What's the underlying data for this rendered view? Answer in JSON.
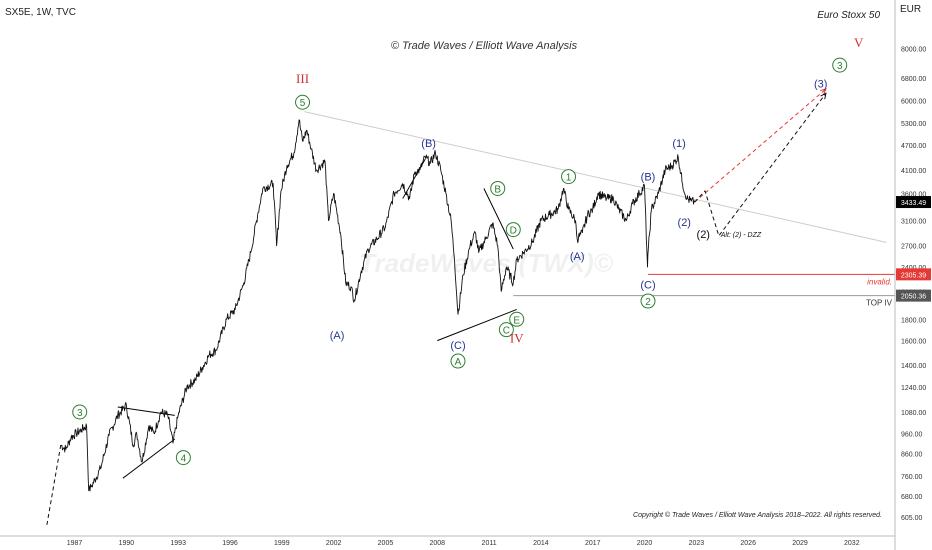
{
  "header": {
    "symbol_line": "SX5E, 1W, TVC",
    "instrument": "Euro Stoxx 50",
    "currency": "EUR"
  },
  "watermark_top": "© Trade Waves / Elliott Wave Analysis",
  "watermark_center": "TradeWaves (TWX)©",
  "copyright": "Copyright © Trade Waves / Elliott Wave Analysis 2018–2022. All rights reserved.",
  "colors": {
    "wave_red": "#d32f2f",
    "wave_green": "#2e7d32",
    "wave_navy": "#283593",
    "price_line": "#111111",
    "last_price_bg": "#000000",
    "invalid_bg": "#e53935",
    "top_iv_bg": "#555555"
  },
  "chart_data": {
    "type": "line",
    "title": "SX5E, 1W, TVC",
    "y_scale": "log",
    "ylim": [
      570,
      10000
    ],
    "xlim": [
      1985.0,
      2034.5
    ],
    "y_ticks": [
      "8000.00",
      "6800.00",
      "6000.00",
      "5300.00",
      "4700.00",
      "4100.00",
      "3600.00",
      "3100.00",
      "2700.00",
      "2400.00",
      "2100.00",
      "1800.00",
      "1600.00",
      "1400.00",
      "1240.00",
      "1080.00",
      "960.00",
      "860.00",
      "760.00",
      "680.00",
      "605.00"
    ],
    "y_tick_values": [
      8000,
      6800,
      6000,
      5300,
      4700,
      4100,
      3600,
      3100,
      2700,
      2400,
      2100,
      1800,
      1600,
      1400,
      1240,
      1080,
      960,
      860,
      760,
      680,
      605
    ],
    "x_ticks": [
      "1987",
      "1990",
      "1993",
      "1996",
      "1999",
      "2002",
      "2005",
      "2008",
      "2011",
      "2014",
      "2017",
      "2020",
      "2023",
      "2026",
      "2029",
      "2032"
    ],
    "x_tick_values": [
      1987,
      1990,
      1993,
      1996,
      1999,
      2002,
      2005,
      2008,
      2011,
      2014,
      2017,
      2020,
      2023,
      2026,
      2029,
      2032
    ],
    "price_series": {
      "name": "SX5E",
      "x": [
        1986.2,
        1986.5,
        1986.8,
        1987.1,
        1987.4,
        1987.7,
        1987.82,
        1988.0,
        1988.5,
        1989.0,
        1989.5,
        1990.0,
        1990.4,
        1990.6,
        1990.9,
        1991.3,
        1991.6,
        1992.0,
        1992.4,
        1992.7,
        1993.0,
        1993.5,
        1994.0,
        1994.4,
        1994.8,
        1995.2,
        1995.8,
        1996.3,
        1996.8,
        1997.2,
        1997.6,
        1997.9,
        1998.5,
        1998.7,
        1998.95,
        1999.3,
        1999.7,
        2000.0,
        2000.2,
        2000.45,
        2000.7,
        2001.0,
        2001.5,
        2001.7,
        2002.0,
        2002.4,
        2002.7,
        2003.0,
        2003.2,
        2003.6,
        2004.0,
        2004.5,
        2005.0,
        2005.5,
        2006.0,
        2006.4,
        2006.7,
        2007.0,
        2007.3,
        2007.6,
        2007.9,
        2008.2,
        2008.5,
        2008.8,
        2009.0,
        2009.2,
        2009.5,
        2009.9,
        2010.2,
        2010.4,
        2010.8,
        2011.2,
        2011.5,
        2011.7,
        2012.0,
        2012.4,
        2012.6,
        2013.0,
        2013.5,
        2014.0,
        2014.5,
        2015.0,
        2015.3,
        2015.6,
        2016.0,
        2016.1,
        2016.4,
        2016.7,
        2017.0,
        2017.3,
        2017.8,
        2018.2,
        2018.5,
        2018.95,
        2019.3,
        2019.7,
        2020.0,
        2020.17,
        2020.22,
        2020.4,
        2020.8,
        2021.2,
        2021.6,
        2021.95,
        2022.2,
        2022.45,
        2022.7,
        2022.9
      ],
      "values": [
        900,
        880,
        940,
        960,
        980,
        1000,
        700,
        720,
        790,
        950,
        1060,
        1120,
        900,
        960,
        820,
        1000,
        960,
        1080,
        1060,
        910,
        1060,
        1240,
        1290,
        1380,
        1480,
        1520,
        1800,
        1900,
        2200,
        2600,
        3200,
        3700,
        3800,
        2700,
        3650,
        4200,
        4500,
        5400,
        4800,
        5100,
        4600,
        4100,
        4300,
        3100,
        3600,
        2900,
        2200,
        2150,
        2000,
        2350,
        2650,
        2800,
        3000,
        3600,
        3800,
        3500,
        4050,
        4100,
        4400,
        4250,
        4500,
        4100,
        3600,
        3100,
        2500,
        1850,
        2300,
        2700,
        2900,
        2600,
        2800,
        3050,
        2700,
        2100,
        2400,
        2200,
        2500,
        2600,
        2750,
        3100,
        3200,
        3300,
        3700,
        3300,
        3100,
        2800,
        2900,
        3200,
        3300,
        3600,
        3500,
        3500,
        3300,
        3100,
        3400,
        3600,
        3750,
        2400,
        2650,
        3300,
        3600,
        4100,
        4200,
        4400,
        3800,
        3500,
        3450,
        3433
      ]
    },
    "projections": [
      {
        "name": "main",
        "style": "red-dashed",
        "x": [
          2022.9,
          2030.5
        ],
        "values": [
          3433,
          6400
        ]
      },
      {
        "name": "alt",
        "style": "black-dashed",
        "x": [
          2022.9,
          2023.5,
          2024.3,
          2030.5
        ],
        "values": [
          3433,
          3650,
          2850,
          6250
        ]
      }
    ],
    "trendlines": [
      {
        "x": [
          2000.3,
          2034.0
        ],
        "values": [
          5650,
          2750
        ],
        "color": "#cccccc"
      },
      {
        "x": [
          1989.5,
          1992.8
        ],
        "values": [
          1110,
          1060
        ],
        "color": "#000000"
      },
      {
        "x": [
          1989.8,
          1992.8
        ],
        "values": [
          750,
          930
        ],
        "color": "#000000"
      },
      {
        "x": [
          2006.0,
          2007.3
        ],
        "values": [
          3500,
          4350
        ],
        "color": "#000000"
      },
      {
        "x": [
          2008.0,
          2012.6
        ],
        "values": [
          1600,
          1900
        ],
        "color": "#000000"
      },
      {
        "x": [
          2010.7,
          2012.4
        ],
        "values": [
          3700,
          2650
        ],
        "color": "#000000"
      }
    ],
    "levels": [
      {
        "name": "invalid",
        "label": "invalid.",
        "price_label": "2305.39",
        "value": 2305.39,
        "from_x": 2020.2
      },
      {
        "name": "top_iv",
        "label": "TOP IV",
        "price_label": "2050.36",
        "value": 2050.36,
        "from_x": 2012.4
      }
    ],
    "last_price": {
      "label": "3433.49",
      "value": 3433.49
    },
    "alt_note": "Alt: (2) - DZZ",
    "wave_labels": [
      {
        "text": "III",
        "x": 2000.2,
        "y": 6800,
        "style": "roman"
      },
      {
        "text": "5",
        "x": 2000.2,
        "y": 5950,
        "style": "circle"
      },
      {
        "text": "(B)",
        "x": 2007.5,
        "y": 4750,
        "style": "paren"
      },
      {
        "text": "(A)",
        "x": 2002.2,
        "y": 1650,
        "style": "paren"
      },
      {
        "text": "B",
        "x": 2011.5,
        "y": 3700,
        "style": "circle"
      },
      {
        "text": "D",
        "x": 2012.4,
        "y": 2950,
        "style": "circle"
      },
      {
        "text": "(C)",
        "x": 2009.2,
        "y": 1560,
        "style": "paren"
      },
      {
        "text": "A",
        "x": 2009.2,
        "y": 1430,
        "style": "circle"
      },
      {
        "text": "C",
        "x": 2012.0,
        "y": 1700,
        "style": "circle"
      },
      {
        "text": "E",
        "x": 2012.6,
        "y": 1800,
        "style": "circle"
      },
      {
        "text": "IV",
        "x": 2012.6,
        "y": 1630,
        "style": "roman"
      },
      {
        "text": "1",
        "x": 2015.6,
        "y": 3950,
        "style": "circle"
      },
      {
        "text": "(A)",
        "x": 2016.1,
        "y": 2550,
        "style": "paren"
      },
      {
        "text": "(B)",
        "x": 2020.2,
        "y": 3950,
        "style": "paren"
      },
      {
        "text": "(C)",
        "x": 2020.2,
        "y": 2180,
        "style": "paren"
      },
      {
        "text": "2",
        "x": 2020.2,
        "y": 1990,
        "style": "circle"
      },
      {
        "text": "(1)",
        "x": 2022.0,
        "y": 4750,
        "style": "paren"
      },
      {
        "text": "(2)",
        "x": 2022.3,
        "y": 3080,
        "style": "paren"
      },
      {
        "text": "(2)",
        "x": 2023.4,
        "y": 2880,
        "style": "paren-black"
      },
      {
        "text": "(3)",
        "x": 2030.2,
        "y": 6600,
        "style": "paren"
      },
      {
        "text": "3",
        "x": 2031.3,
        "y": 7300,
        "style": "circle"
      },
      {
        "text": "V",
        "x": 2032.4,
        "y": 8300,
        "style": "roman"
      },
      {
        "text": "3",
        "x": 1987.3,
        "y": 1080,
        "style": "circle"
      },
      {
        "text": "4",
        "x": 1993.3,
        "y": 840,
        "style": "circle"
      }
    ]
  }
}
